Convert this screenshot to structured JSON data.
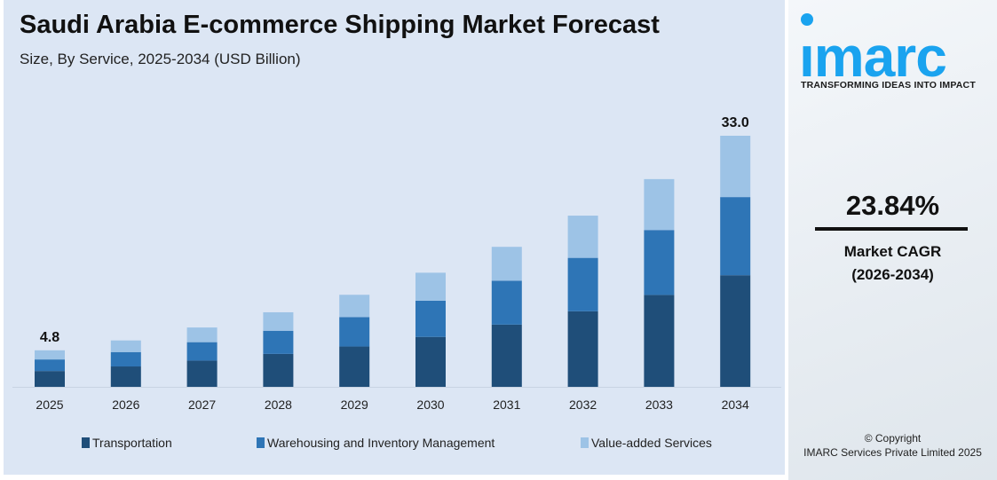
{
  "header": {
    "title": "Saudi Arabia E-commerce Shipping Market Forecast",
    "subtitle": "Size, By Service, 2025-2034 (USD Billion)"
  },
  "chart_data": {
    "type": "bar",
    "stacked": true,
    "title": "Saudi Arabia E-commerce Shipping Market Forecast",
    "subtitle": "Size, By Service, 2025-2034 (USD Billion)",
    "categories": [
      "2025",
      "2026",
      "2027",
      "2028",
      "2029",
      "2030",
      "2031",
      "2032",
      "2033",
      "2034"
    ],
    "series": [
      {
        "name": "Transportation",
        "color": "#1f4e79",
        "values": [
          2.08,
          2.68,
          3.45,
          4.33,
          5.3,
          6.56,
          8.18,
          9.93,
          12.08,
          14.67
        ]
      },
      {
        "name": "Warehousing and Inventory Management",
        "color": "#2e75b6",
        "values": [
          1.52,
          1.89,
          2.42,
          3.04,
          3.87,
          4.76,
          5.77,
          7.02,
          8.53,
          10.27
        ]
      },
      {
        "name": "Value-added Services",
        "color": "#9dc3e6",
        "values": [
          1.2,
          1.53,
          1.93,
          2.43,
          2.93,
          3.68,
          4.45,
          5.55,
          6.69,
          8.06
        ]
      }
    ],
    "data_labels": [
      {
        "category": "2025",
        "text": "4.8"
      },
      {
        "category": "2034",
        "text": "33.0"
      }
    ],
    "ylim": [
      0,
      33
    ],
    "grid": false,
    "legend_position": "bottom"
  },
  "brand": {
    "logo_text": "imarc",
    "logo_color": "#1aa3ef",
    "tagline": "TRANSFORMING IDEAS INTO IMPACT"
  },
  "cagr": {
    "value": "23.84%",
    "label": "Market CAGR",
    "period": "(2026-2034)"
  },
  "footer": {
    "copyright": "© Copyright",
    "company": "IMARC Services Private Limited 2025"
  }
}
